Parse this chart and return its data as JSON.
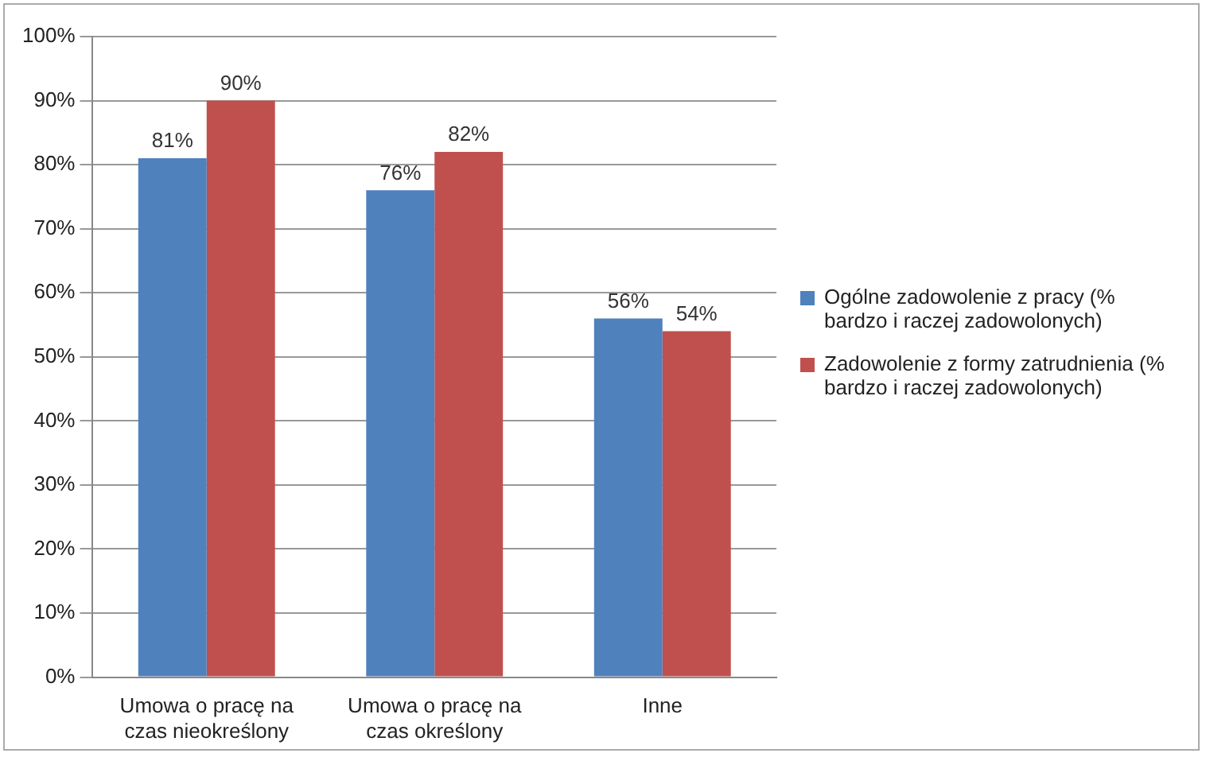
{
  "chart_data": {
    "type": "bar",
    "categories": [
      "Umowa o pracę na czas nieokreślony",
      "Umowa o pracę na czas określony",
      "Inne"
    ],
    "series": [
      {
        "name": "Ogólne zadowolenie z pracy (% bardzo i raczej zadowolonych)",
        "color": "#4f81bd",
        "values": [
          81,
          76,
          56
        ],
        "value_labels": [
          "81%",
          "76%",
          "56%"
        ]
      },
      {
        "name": "Zadowolenie z formy zatrudnienia (% bardzo i raczej zadowolonych)",
        "color": "#c0504d",
        "values": [
          90,
          82,
          54
        ],
        "value_labels": [
          "90%",
          "82%",
          "54%"
        ]
      }
    ],
    "ylim": [
      0,
      100
    ],
    "yticks": [
      {
        "value": 0,
        "label": "0%"
      },
      {
        "value": 10,
        "label": "10%"
      },
      {
        "value": 20,
        "label": "20%"
      },
      {
        "value": 30,
        "label": "30%"
      },
      {
        "value": 40,
        "label": "40%"
      },
      {
        "value": 50,
        "label": "50%"
      },
      {
        "value": 60,
        "label": "60%"
      },
      {
        "value": 70,
        "label": "70%"
      },
      {
        "value": 80,
        "label": "80%"
      },
      {
        "value": 90,
        "label": "90%"
      },
      {
        "value": 100,
        "label": "100%"
      }
    ],
    "grid": "y",
    "legend": "right"
  }
}
